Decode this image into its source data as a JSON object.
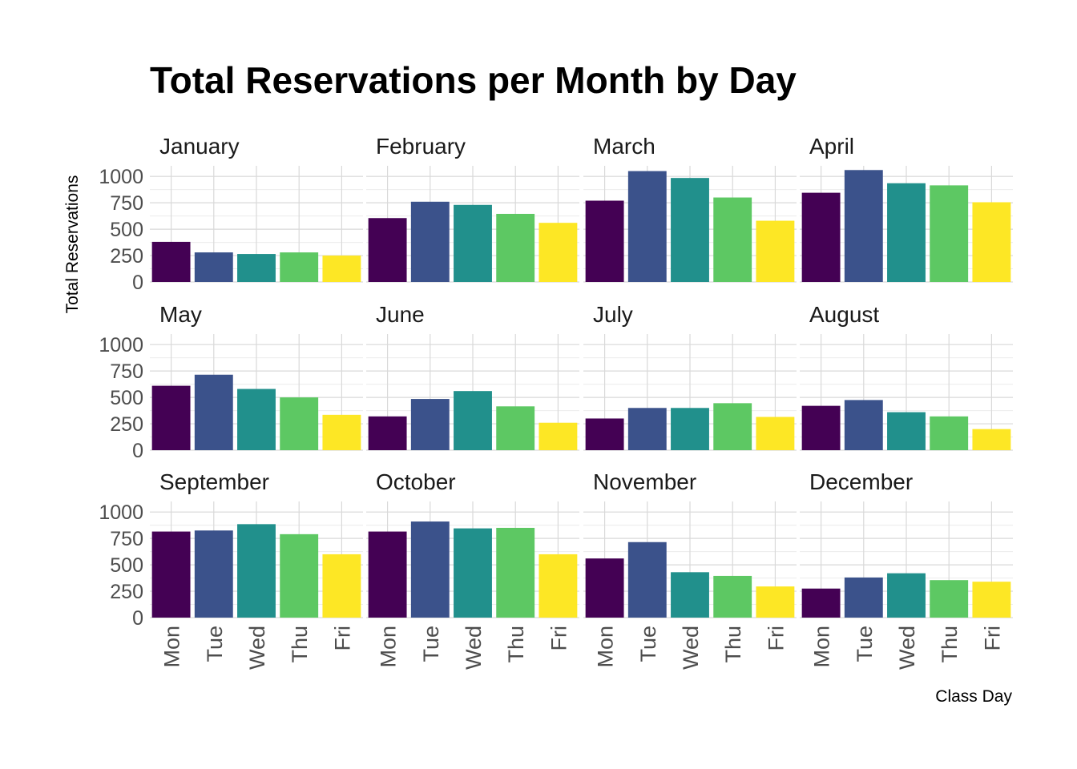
{
  "chart_data": {
    "type": "bar",
    "title": "Total Reservations per Month by Day",
    "xlabel": "Class Day",
    "ylabel": "Total Reservations",
    "categories": [
      "Mon",
      "Tue",
      "Wed",
      "Thu",
      "Fri"
    ],
    "ylim": [
      0,
      1100
    ],
    "yticks": [
      0,
      250,
      500,
      750,
      1000
    ],
    "ytick_labels": [
      "0",
      "250",
      "500",
      "750",
      "1000"
    ],
    "grid": true,
    "colors": [
      "#440154",
      "#3b528b",
      "#21908c",
      "#5dc863",
      "#fde725"
    ],
    "panels": [
      {
        "name": "January",
        "values": [
          380,
          280,
          265,
          280,
          250
        ]
      },
      {
        "name": "February",
        "values": [
          605,
          760,
          730,
          645,
          560
        ]
      },
      {
        "name": "March",
        "values": [
          770,
          1050,
          985,
          800,
          580
        ]
      },
      {
        "name": "April",
        "values": [
          845,
          1060,
          935,
          915,
          755
        ]
      },
      {
        "name": "May",
        "values": [
          610,
          715,
          580,
          500,
          335
        ]
      },
      {
        "name": "June",
        "values": [
          320,
          485,
          560,
          415,
          260
        ]
      },
      {
        "name": "July",
        "values": [
          300,
          400,
          400,
          445,
          315
        ]
      },
      {
        "name": "August",
        "values": [
          420,
          475,
          360,
          320,
          200
        ]
      },
      {
        "name": "September",
        "values": [
          815,
          825,
          885,
          790,
          600
        ]
      },
      {
        "name": "October",
        "values": [
          815,
          910,
          845,
          850,
          600
        ]
      },
      {
        "name": "November",
        "values": [
          560,
          715,
          430,
          395,
          295
        ]
      },
      {
        "name": "December",
        "values": [
          275,
          380,
          420,
          355,
          340
        ]
      }
    ]
  }
}
